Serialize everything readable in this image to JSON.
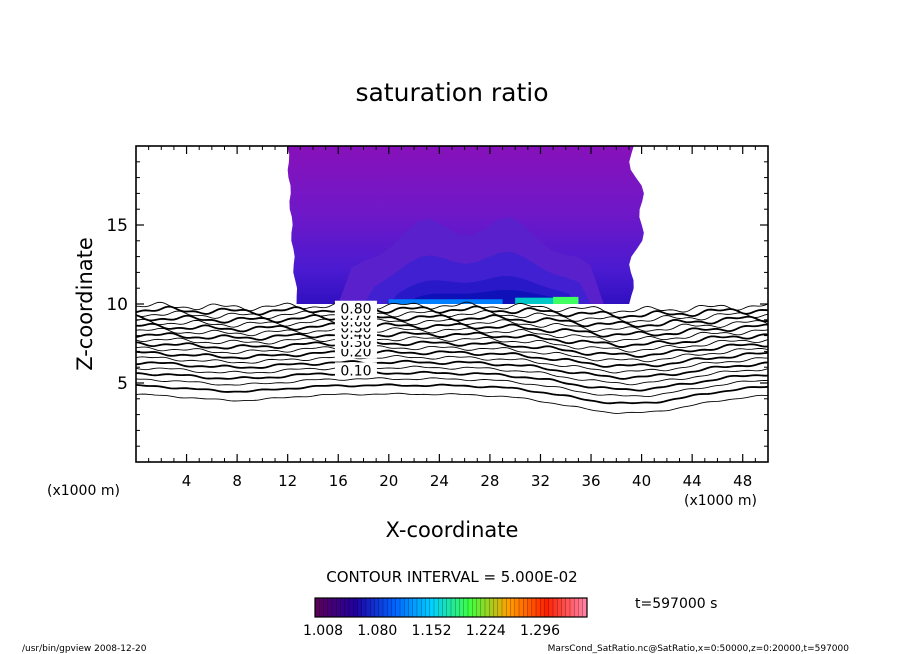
{
  "chart_data": {
    "type": "contour",
    "title": "saturation ratio",
    "xlabel": "X-coordinate",
    "ylabel": "Z-coordinate",
    "x_unit": "(x1000 m)",
    "xlim": [
      0,
      50
    ],
    "ylim": [
      0,
      20
    ],
    "x_ticks": [
      4,
      8,
      12,
      16,
      20,
      24,
      28,
      32,
      36,
      40,
      44,
      48
    ],
    "y_ticks": [
      5,
      10,
      15
    ],
    "contour_interval_text": "CONTOUR INTERVAL = 5.000E-02",
    "contour_labels": [
      {
        "text": "0.10",
        "x": 17.4,
        "z": 5.8
      },
      {
        "text": "0.20",
        "x": 17.4,
        "z": 7.0
      },
      {
        "text": "0.30",
        "x": 17.4,
        "z": 7.6
      },
      {
        "text": "0.40",
        "x": 17.4,
        "z": 8.1
      },
      {
        "text": "0.50",
        "x": 17.4,
        "z": 8.5
      },
      {
        "text": "0.60",
        "x": 17.4,
        "z": 8.9
      },
      {
        "text": "0.70",
        "x": 17.4,
        "z": 9.3
      },
      {
        "text": "0.80",
        "x": 17.4,
        "z": 9.7
      }
    ],
    "contour_levels_lower": [
      0.05,
      0.1,
      0.15,
      0.2,
      0.25,
      0.3,
      0.35,
      0.4,
      0.45,
      0.5,
      0.55,
      0.6,
      0.65,
      0.7,
      0.75,
      0.8,
      0.85,
      0.9,
      0.95
    ],
    "shaded_region": {
      "x_range": [
        12.8,
        39.6
      ],
      "z_range": [
        10.0,
        20.0
      ],
      "min_value": 1.008,
      "max_value": 1.296
    },
    "colorbar": {
      "ticks": [
        "1.008",
        "1.080",
        "1.152",
        "1.224",
        "1.296"
      ],
      "colors": [
        "#5a005a",
        "#2000a0",
        "#0060ff",
        "#00d0ff",
        "#40ff40",
        "#ffa000",
        "#ff2000",
        "#ff80a0"
      ]
    },
    "time_label": "t=597000 s"
  },
  "footer": {
    "left": "/usr/bin/gpview  2008-12-20",
    "right": "MarsCond_SatRatio.nc@SatRatio,x=0:50000,z=0:20000,t=597000"
  }
}
